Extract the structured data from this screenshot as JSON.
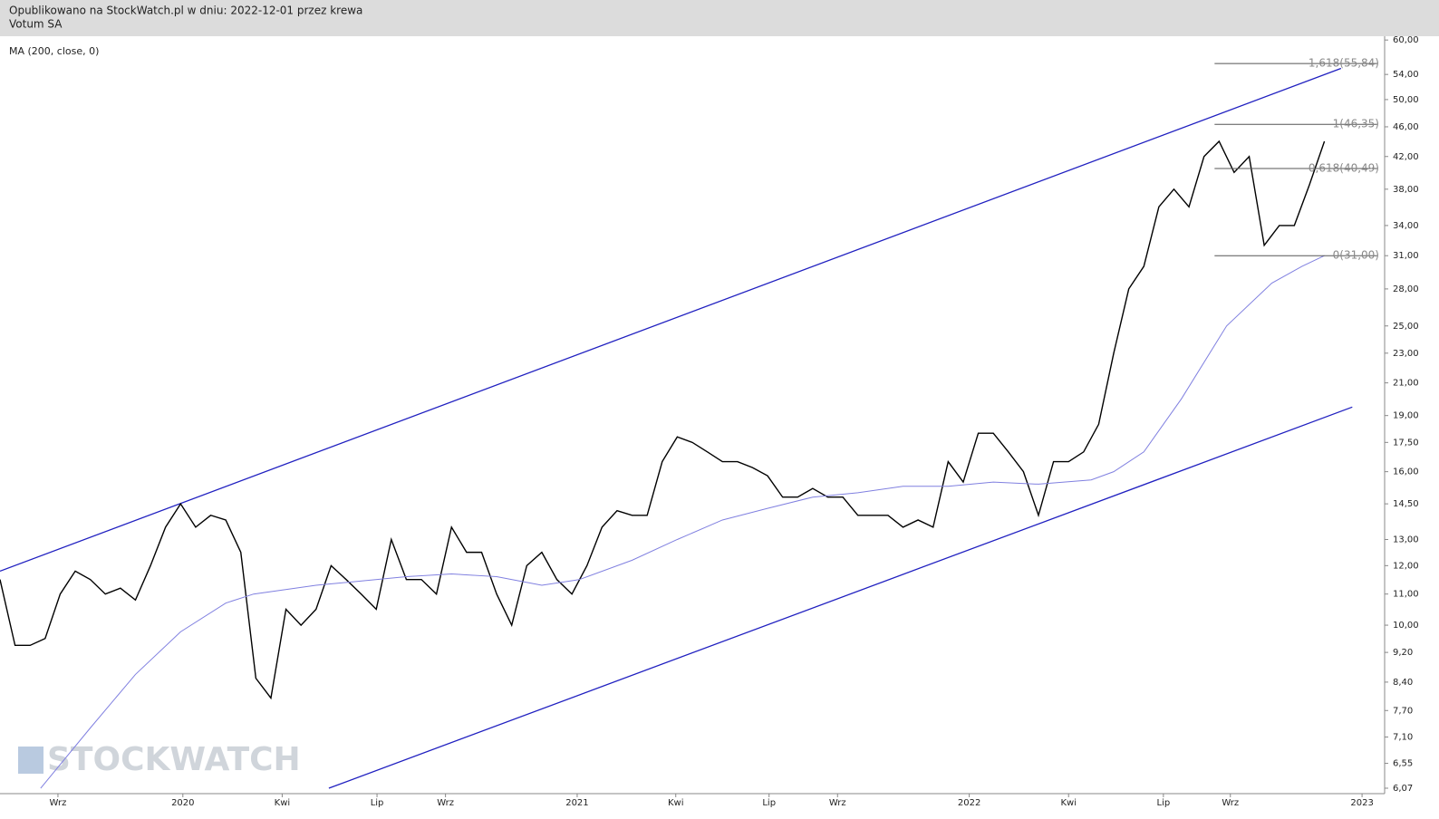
{
  "chart_data": {
    "type": "line",
    "title": "Opublikowano na StockWatch.pl w dniu: 2022-12-01 przez krewa",
    "watermark": "STOCKWATCH",
    "log_scale": true,
    "xlim": [
      0,
      184
    ],
    "xticks": [
      {
        "value": 7.7,
        "label": "Wrz"
      },
      {
        "value": 24.3,
        "label": "2020"
      },
      {
        "value": 37.5,
        "label": "Kwi"
      },
      {
        "value": 50.1,
        "label": "Lip"
      },
      {
        "value": 59.2,
        "label": "Wrz"
      },
      {
        "value": 76.7,
        "label": "2021"
      },
      {
        "value": 89.8,
        "label": "Kwi"
      },
      {
        "value": 102.2,
        "label": "Lip"
      },
      {
        "value": 111.3,
        "label": "Wrz"
      },
      {
        "value": 128.8,
        "label": "2022"
      },
      {
        "value": 142,
        "label": "Kwi"
      },
      {
        "value": 154.6,
        "label": "Lip"
      },
      {
        "value": 163.5,
        "label": "Wrz"
      },
      {
        "value": 181,
        "label": "2023"
      }
    ],
    "ylim": [
      5.97,
      60.7
    ],
    "yticks": [
      {
        "value": 6.07,
        "label": "6,07"
      },
      {
        "value": 6.55,
        "label": "6,55"
      },
      {
        "value": 7.1,
        "label": "7,10"
      },
      {
        "value": 7.7,
        "label": "7,70"
      },
      {
        "value": 8.4,
        "label": "8,40"
      },
      {
        "value": 9.2,
        "label": "9,20"
      },
      {
        "value": 10,
        "label": "10,00"
      },
      {
        "value": 11,
        "label": "11,00"
      },
      {
        "value": 12,
        "label": "12,00"
      },
      {
        "value": 13,
        "label": "13,00"
      },
      {
        "value": 14.5,
        "label": "14,50"
      },
      {
        "value": 16,
        "label": "16,00"
      },
      {
        "value": 17.5,
        "label": "17,50"
      },
      {
        "value": 19,
        "label": "19,00"
      },
      {
        "value": 21,
        "label": "21,00"
      },
      {
        "value": 23,
        "label": "23,00"
      },
      {
        "value": 25,
        "label": "25,00"
      },
      {
        "value": 28,
        "label": "28,00"
      },
      {
        "value": 31,
        "label": "31,00"
      },
      {
        "value": 34,
        "label": "34,00"
      },
      {
        "value": 38,
        "label": "38,00"
      },
      {
        "value": 42,
        "label": "42,00"
      },
      {
        "value": 46,
        "label": "46,00"
      },
      {
        "value": 50,
        "label": "50,00"
      },
      {
        "value": 54,
        "label": "54,00"
      },
      {
        "value": 60,
        "label": "60,00"
      }
    ],
    "series": [
      {
        "name": "Votum SA",
        "color": "#000000",
        "x": [
          0,
          2,
          4,
          6,
          8,
          10,
          12,
          14,
          16,
          18,
          20,
          22,
          24,
          26,
          28,
          30,
          32,
          34,
          36,
          38,
          40,
          42,
          44,
          46,
          48,
          50,
          52,
          54,
          56,
          58,
          60,
          62,
          64,
          66,
          68,
          70,
          72,
          74,
          76,
          78,
          80,
          82,
          84,
          86,
          88,
          90,
          92,
          94,
          96,
          98,
          100,
          102,
          104,
          106,
          108,
          110,
          112,
          114,
          116,
          118,
          120,
          122,
          124,
          126,
          128,
          130,
          132,
          134,
          136,
          138,
          140,
          142,
          144,
          146,
          148,
          150,
          152,
          154,
          156,
          158,
          160,
          162,
          164,
          166,
          168,
          170,
          172,
          174,
          176
        ],
        "values": [
          11.5,
          9.4,
          9.4,
          9.6,
          11.0,
          11.8,
          11.5,
          11.0,
          11.2,
          10.8,
          12.0,
          13.5,
          14.5,
          13.5,
          14.0,
          13.8,
          12.5,
          8.5,
          8.0,
          10.5,
          10.0,
          10.5,
          12.0,
          11.5,
          11.0,
          10.5,
          13.0,
          11.5,
          11.5,
          11.0,
          13.5,
          12.5,
          12.5,
          11.0,
          10.0,
          12.0,
          12.5,
          11.5,
          11.0,
          12.0,
          13.5,
          14.2,
          14.0,
          14.0,
          16.5,
          17.8,
          17.5,
          17.0,
          16.5,
          16.5,
          16.2,
          15.8,
          14.8,
          14.8,
          15.2,
          14.8,
          14.8,
          14.0,
          14.0,
          14.0,
          13.5,
          13.8,
          13.5,
          16.5,
          15.5,
          18.0,
          18.0,
          17.0,
          16.0,
          14.0,
          16.5,
          16.5,
          17.0,
          18.5,
          23.0,
          28.0,
          30.0,
          36.0,
          38.0,
          36.0,
          42.0,
          44.0,
          40.0,
          42.0,
          32.0,
          34.0,
          34.0,
          38.5,
          44.0
        ]
      },
      {
        "name": "MA (200, close, 0)",
        "color": "#8080e0",
        "x": [
          5.4,
          12,
          18,
          24,
          30,
          33.7,
          42,
          54,
          60,
          66,
          72,
          77,
          84,
          90,
          96,
          102,
          108,
          114,
          120,
          126,
          132,
          138,
          145,
          148,
          152,
          157,
          163,
          169,
          173,
          176
        ],
        "values": [
          6.07,
          7.3,
          8.6,
          9.8,
          10.7,
          11.0,
          11.3,
          11.6,
          11.7,
          11.6,
          11.3,
          11.5,
          12.2,
          13.0,
          13.8,
          14.3,
          14.8,
          15.0,
          15.3,
          15.3,
          15.5,
          15.4,
          15.6,
          16.0,
          17.0,
          20.0,
          25.0,
          28.5,
          30.0,
          31.0
        ]
      }
    ],
    "trendlines": [
      {
        "color": "#2020c0",
        "x": [
          0,
          178.2
        ],
        "values": [
          11.8,
          55
        ]
      },
      {
        "color": "#2020c0",
        "x": [
          43.7,
          179.7
        ],
        "values": [
          6.07,
          19.5
        ]
      }
    ],
    "levels": [
      {
        "value": 55.84,
        "label": "1,618(55,84)"
      },
      {
        "value": 46.35,
        "label": "1(46,35)"
      },
      {
        "value": 40.49,
        "label": "0,618(40,49)"
      },
      {
        "value": 31.0,
        "label": "0(31,00)"
      }
    ],
    "levels_x": [
      161.4,
      183
    ]
  }
}
